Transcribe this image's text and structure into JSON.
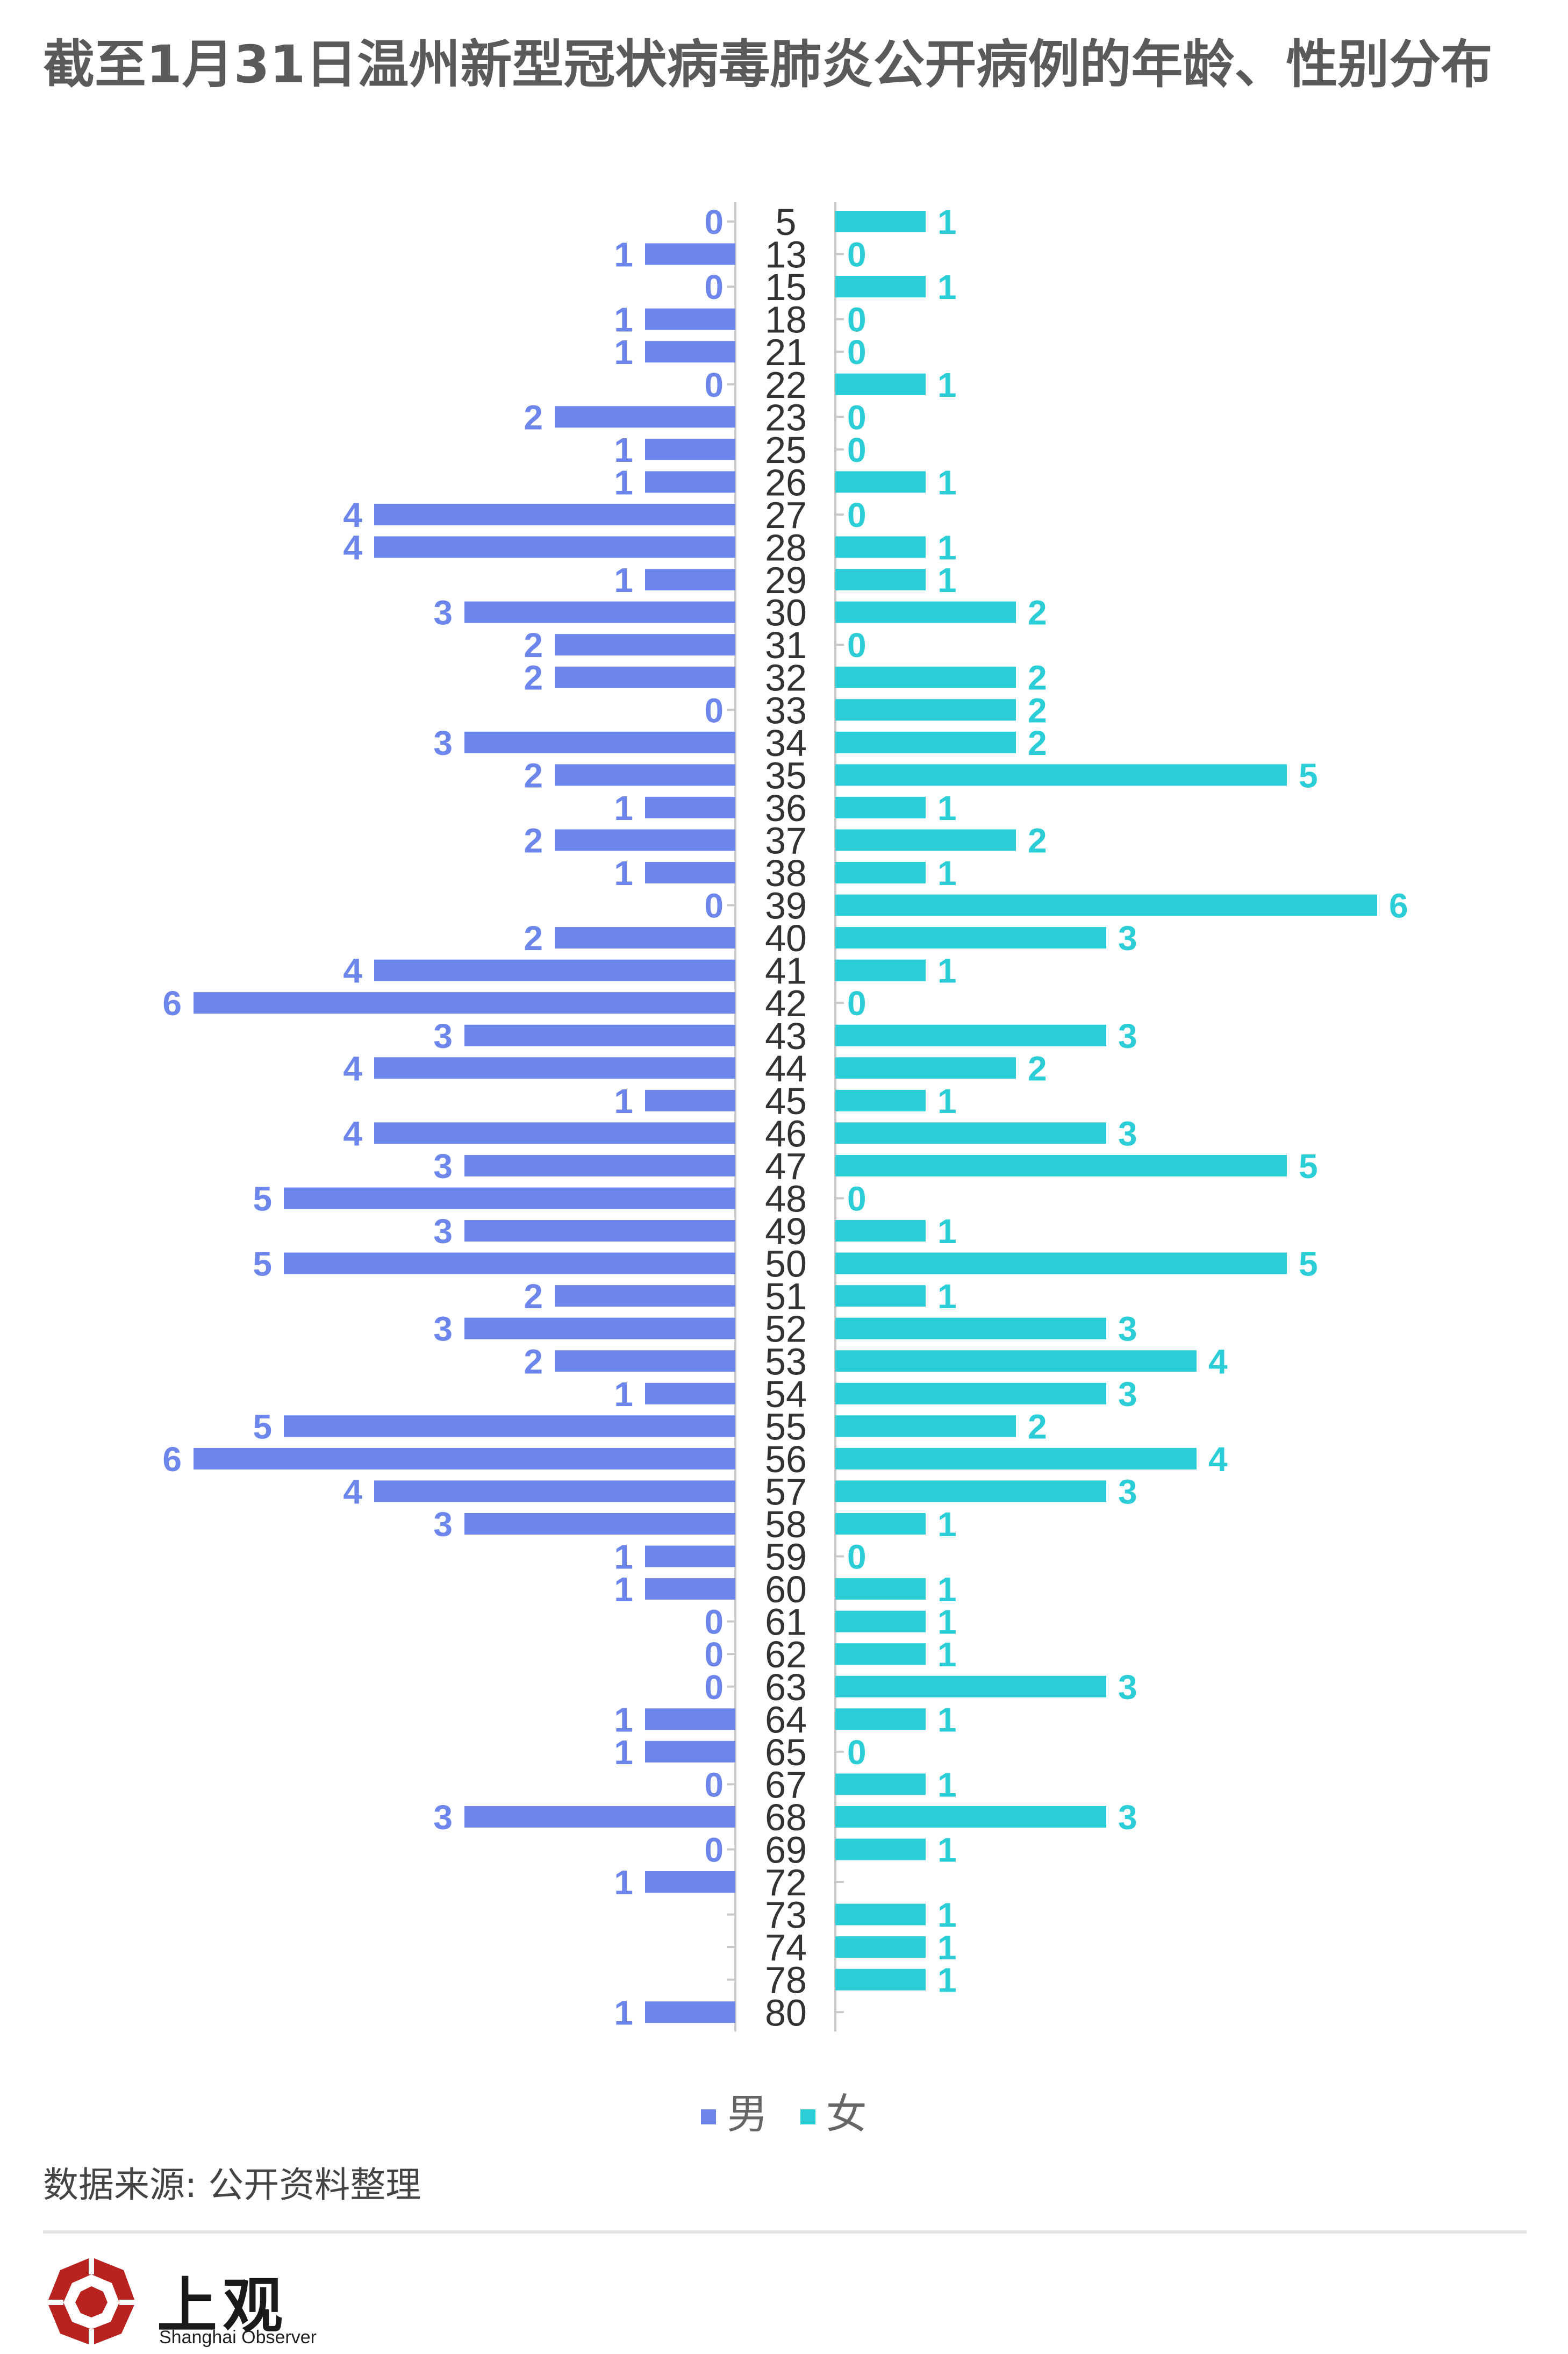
{
  "title": "截至1月31日温州新型冠状病毒肺炎公开病例的年龄、性别分布",
  "source": "数据来源: 公开资料整理",
  "brand": {
    "name": "上观",
    "subtitle": "Shanghai Observer"
  },
  "colors": {
    "male": "#6c86ec",
    "female": "#2bcdd6",
    "title": "#5a5a5a"
  },
  "chart_data": {
    "type": "bar",
    "orientation": "horizontal-butterfly",
    "title": "截至1月31日温州新型冠状病毒肺炎公开病例的年龄、性别分布",
    "xlabel": "",
    "ylabel": "",
    "xlim": [
      0,
      6
    ],
    "grid": false,
    "legend_position": "bottom",
    "categories": [
      "5",
      "13",
      "15",
      "18",
      "21",
      "22",
      "23",
      "25",
      "26",
      "27",
      "28",
      "29",
      "30",
      "31",
      "32",
      "33",
      "34",
      "35",
      "36",
      "37",
      "38",
      "39",
      "40",
      "41",
      "42",
      "43",
      "44",
      "45",
      "46",
      "47",
      "48",
      "49",
      "50",
      "51",
      "52",
      "53",
      "54",
      "55",
      "56",
      "57",
      "58",
      "59",
      "60",
      "61",
      "62",
      "63",
      "64",
      "65",
      "67",
      "68",
      "69",
      "72",
      "73",
      "74",
      "78",
      "80"
    ],
    "series": [
      {
        "name": "男",
        "side": "left",
        "values": [
          0,
          1,
          0,
          1,
          1,
          0,
          2,
          1,
          1,
          4,
          4,
          1,
          3,
          2,
          2,
          0,
          3,
          2,
          1,
          2,
          1,
          0,
          2,
          4,
          6,
          3,
          4,
          1,
          4,
          3,
          5,
          3,
          5,
          2,
          3,
          2,
          1,
          5,
          6,
          4,
          3,
          1,
          1,
          0,
          0,
          0,
          1,
          1,
          0,
          3,
          0,
          1,
          null,
          null,
          null,
          1
        ]
      },
      {
        "name": "女",
        "side": "right",
        "values": [
          1,
          0,
          1,
          0,
          0,
          1,
          0,
          0,
          1,
          0,
          1,
          1,
          2,
          0,
          2,
          2,
          2,
          5,
          1,
          2,
          1,
          6,
          3,
          1,
          0,
          3,
          2,
          1,
          3,
          5,
          0,
          1,
          5,
          1,
          3,
          4,
          3,
          2,
          4,
          3,
          1,
          0,
          1,
          1,
          1,
          3,
          1,
          0,
          1,
          3,
          1,
          null,
          1,
          1,
          1,
          null
        ]
      }
    ]
  }
}
